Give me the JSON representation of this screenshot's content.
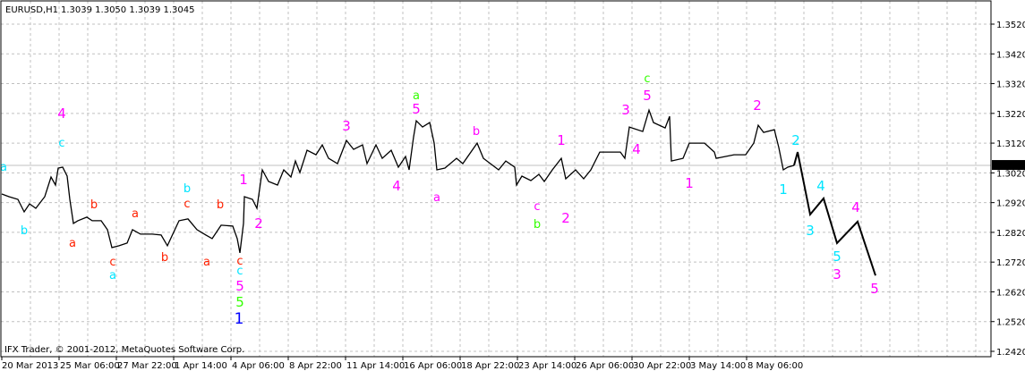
{
  "header": {
    "symbol": "EURUSD,H1",
    "ohlc": "1.3039 1.3050 1.3039 1.3045"
  },
  "copyright": "IFX Trader, © 2001-2012, MetaQuotes Software Corp.",
  "current_price": "1.3045",
  "colors": {
    "line": "#000000",
    "grid": "#c0c0c0",
    "cyan": "#00e5ff",
    "magenta": "#ff00ff",
    "red": "#ff2000",
    "green": "#33ff00",
    "blue": "#0000ff",
    "price_box": "#000000"
  },
  "chart_data": {
    "type": "line",
    "timeframe": "H1",
    "ylim": [
      1.242,
      1.352
    ],
    "grid": true,
    "y_ticks": [
      "1.3520",
      "1.3420",
      "1.3320",
      "1.3220",
      "1.3120",
      "1.3020",
      "1.2920",
      "1.2820",
      "1.2720",
      "1.2620",
      "1.2520",
      "1.2420"
    ],
    "x_ticks": [
      {
        "label": "20 Mar 2013",
        "time": "2013-03-20T14:00"
      },
      {
        "label": "25 Mar 06:00",
        "time": "2013-03-25T06:00"
      },
      {
        "label": "27 Mar 22:00",
        "time": "2013-03-27T22:00"
      },
      {
        "label": "1 Apr 14:00",
        "time": "2013-04-01T14:00"
      },
      {
        "label": "4 Apr 06:00",
        "time": "2013-04-04T06:00"
      },
      {
        "label": "8 Apr 22:00",
        "time": "2013-04-08T22:00"
      },
      {
        "label": "11 Apr 14:00",
        "time": "2013-04-11T14:00"
      },
      {
        "label": "16 Apr 06:00",
        "time": "2013-04-16T06:00"
      },
      {
        "label": "18 Apr 22:00",
        "time": "2013-04-18T22:00"
      },
      {
        "label": "23 Apr 14:00",
        "time": "2013-04-23T14:00"
      },
      {
        "label": "26 Apr 06:00",
        "time": "2013-04-26T06:00"
      },
      {
        "label": "30 Apr 22:00",
        "time": "2013-04-30T22:00"
      },
      {
        "label": "3 May 14:00",
        "time": "2013-05-03T14:00"
      },
      {
        "label": "8 May 06:00",
        "time": "2013-05-08T06:00"
      }
    ],
    "series": [
      {
        "kind": "price",
        "points": [
          [
            "2013-03-20T14:00",
            1.2949
          ],
          [
            "2013-03-20T22:00",
            1.294
          ],
          [
            "2013-03-21T08:00",
            1.2931
          ],
          [
            "2013-03-21T15:00",
            1.2889
          ],
          [
            "2013-03-21T21:00",
            1.2916
          ],
          [
            "2013-03-22T04:00",
            1.2901
          ],
          [
            "2013-03-22T14:00",
            1.294
          ],
          [
            "2013-03-22T21:00",
            1.3006
          ],
          [
            "2013-03-25T02:00",
            1.2979
          ],
          [
            "2013-03-25T05:00",
            1.3036
          ],
          [
            "2013-03-25T10:00",
            1.3039
          ],
          [
            "2013-03-25T15:00",
            1.3009
          ],
          [
            "2013-03-25T18:00",
            1.2931
          ],
          [
            "2013-03-25T22:00",
            1.285
          ],
          [
            "2013-03-26T03:00",
            1.2859
          ],
          [
            "2013-03-26T13:00",
            1.2871
          ],
          [
            "2013-03-26T19:00",
            1.2859
          ],
          [
            "2013-03-27T05:00",
            1.2859
          ],
          [
            "2013-03-27T12:00",
            1.2829
          ],
          [
            "2013-03-27T17:00",
            1.2769
          ],
          [
            "2013-03-28T01:00",
            1.2775
          ],
          [
            "2013-03-28T10:00",
            1.2784
          ],
          [
            "2013-03-28T16:00",
            1.2829
          ],
          [
            "2013-03-29T01:00",
            1.2814
          ],
          [
            "2013-03-29T14:00",
            1.2814
          ],
          [
            "2013-04-01T00:00",
            1.2811
          ],
          [
            "2013-04-01T07:00",
            1.2775
          ],
          [
            "2013-04-01T13:00",
            1.2814
          ],
          [
            "2013-04-01T20:00",
            1.2859
          ],
          [
            "2013-04-02T06:00",
            1.2865
          ],
          [
            "2013-04-02T16:00",
            1.2829
          ],
          [
            "2013-04-03T02:00",
            1.2811
          ],
          [
            "2013-04-03T09:00",
            1.2799
          ],
          [
            "2013-04-03T19:00",
            1.2844
          ],
          [
            "2013-04-04T08:00",
            1.2841
          ],
          [
            "2013-04-04T13:00",
            1.2799
          ],
          [
            "2013-04-04T16:00",
            1.2751
          ],
          [
            "2013-04-04T20:00",
            1.285
          ],
          [
            "2013-04-04T21:00",
            1.294
          ],
          [
            "2013-04-05T06:00",
            1.2931
          ],
          [
            "2013-04-05T11:00",
            1.2901
          ],
          [
            "2013-04-05T17:00",
            1.303
          ],
          [
            "2013-04-08T00:00",
            1.2991
          ],
          [
            "2013-04-08T10:00",
            1.2979
          ],
          [
            "2013-04-08T17:00",
            1.303
          ],
          [
            "2013-04-09T01:00",
            1.3006
          ],
          [
            "2013-04-09T06:00",
            1.306
          ],
          [
            "2013-04-09T11:00",
            1.3021
          ],
          [
            "2013-04-09T19:00",
            1.3096
          ],
          [
            "2013-04-10T05:00",
            1.3081
          ],
          [
            "2013-04-10T12:00",
            1.3114
          ],
          [
            "2013-04-10T19:00",
            1.3069
          ],
          [
            "2013-04-11T05:00",
            1.3051
          ],
          [
            "2013-04-11T15:00",
            1.3129
          ],
          [
            "2013-04-11T23:00",
            1.3099
          ],
          [
            "2013-04-12T09:00",
            1.3114
          ],
          [
            "2013-04-12T14:00",
            1.3051
          ],
          [
            "2013-04-15T00:00",
            1.3114
          ],
          [
            "2013-04-15T07:00",
            1.3069
          ],
          [
            "2013-04-15T17:00",
            1.3096
          ],
          [
            "2013-04-16T01:00",
            1.3039
          ],
          [
            "2013-04-16T09:00",
            1.3075
          ],
          [
            "2013-04-16T13:00",
            1.303
          ],
          [
            "2013-04-16T18:00",
            1.3141
          ],
          [
            "2013-04-16T21:00",
            1.3195
          ],
          [
            "2013-04-17T04:00",
            1.3174
          ],
          [
            "2013-04-17T12:00",
            1.3189
          ],
          [
            "2013-04-17T17:00",
            1.312
          ],
          [
            "2013-04-17T20:00",
            1.303
          ],
          [
            "2013-04-18T05:00",
            1.3036
          ],
          [
            "2013-04-18T18:00",
            1.3069
          ],
          [
            "2013-04-19T01:00",
            1.3051
          ],
          [
            "2013-04-19T17:00",
            1.312
          ],
          [
            "2013-04-22T00:00",
            1.3069
          ],
          [
            "2013-04-22T17:00",
            1.303
          ],
          [
            "2013-04-23T01:00",
            1.306
          ],
          [
            "2013-04-23T11:00",
            1.3039
          ],
          [
            "2013-04-23T13:00",
            1.2979
          ],
          [
            "2013-04-23T19:00",
            1.3009
          ],
          [
            "2013-04-24T05:00",
            1.2994
          ],
          [
            "2013-04-24T14:00",
            1.3015
          ],
          [
            "2013-04-24T20:00",
            1.2991
          ],
          [
            "2013-04-25T05:00",
            1.303
          ],
          [
            "2013-04-25T15:00",
            1.3069
          ],
          [
            "2013-04-25T20:00",
            1.3
          ],
          [
            "2013-04-26T07:00",
            1.303
          ],
          [
            "2013-04-26T16:00",
            1.3
          ],
          [
            "2013-04-29T00:00",
            1.303
          ],
          [
            "2013-04-29T10:00",
            1.309
          ],
          [
            "2013-04-30T09:00",
            1.309
          ],
          [
            "2013-04-30T14:00",
            1.3069
          ],
          [
            "2013-04-30T19:00",
            1.3174
          ],
          [
            "2013-05-01T10:00",
            1.3159
          ],
          [
            "2013-05-01T17:00",
            1.3231
          ],
          [
            "2013-05-01T22:00",
            1.3189
          ],
          [
            "2013-05-02T11:00",
            1.3171
          ],
          [
            "2013-05-02T16:00",
            1.321
          ],
          [
            "2013-05-02T18:00",
            1.306
          ],
          [
            "2013-05-03T07:00",
            1.3069
          ],
          [
            "2013-05-03T14:00",
            1.312
          ],
          [
            "2013-05-06T07:00",
            1.312
          ],
          [
            "2013-05-06T18:00",
            1.309
          ],
          [
            "2013-05-06T20:00",
            1.3069
          ],
          [
            "2013-05-07T16:00",
            1.3081
          ],
          [
            "2013-05-08T05:00",
            1.3081
          ],
          [
            "2013-05-08T14:00",
            1.312
          ],
          [
            "2013-05-08T19:00",
            1.318
          ],
          [
            "2013-05-09T01:00",
            1.3156
          ],
          [
            "2013-05-09T13:00",
            1.3165
          ],
          [
            "2013-05-09T18:00",
            1.3105
          ],
          [
            "2013-05-09T23:00",
            1.303
          ],
          [
            "2013-05-10T04:00",
            1.3039
          ],
          [
            "2013-05-10T11:00",
            1.3045
          ]
        ]
      },
      {
        "kind": "projection",
        "points": [
          [
            "2013-05-10T11:00",
            1.3045
          ],
          [
            "2013-05-10T15:00",
            1.309
          ],
          [
            "2013-05-13T05:00",
            1.288
          ],
          [
            "2013-05-13T20:00",
            1.2934
          ],
          [
            "2013-05-14T11:00",
            1.2784
          ],
          [
            "2013-05-15T10:00",
            1.2856
          ],
          [
            "2013-05-16T06:00",
            1.2675
          ]
        ]
      }
    ],
    "annotations": [
      {
        "text": "a",
        "color": "cyan",
        "time": "2013-03-20T16:00",
        "price": 1.3042
      },
      {
        "text": "b",
        "color": "cyan",
        "time": "2013-03-21T15:00",
        "price": 1.2829
      },
      {
        "text": "4",
        "color": "magenta",
        "time": "2013-03-25T09:00",
        "price": 1.322
      },
      {
        "text": "c",
        "color": "cyan",
        "time": "2013-03-25T09:00",
        "price": 1.3123
      },
      {
        "text": "a",
        "color": "red",
        "time": "2013-03-25T21:00",
        "price": 1.2787
      },
      {
        "text": "b",
        "color": "red",
        "time": "2013-03-26T21:00",
        "price": 1.2916
      },
      {
        "text": "c",
        "color": "red",
        "time": "2013-03-27T18:00",
        "price": 1.2723
      },
      {
        "text": "a",
        "color": "cyan",
        "time": "2013-03-27T18:00",
        "price": 1.2678
      },
      {
        "text": "a",
        "color": "red",
        "time": "2013-03-28T19:00",
        "price": 1.2886
      },
      {
        "text": "b",
        "color": "red",
        "time": "2013-04-01T04:00",
        "price": 1.2738
      },
      {
        "text": "b",
        "color": "cyan",
        "time": "2013-04-02T05:00",
        "price": 1.297
      },
      {
        "text": "c",
        "color": "red",
        "time": "2013-04-02T05:00",
        "price": 1.2919
      },
      {
        "text": "a",
        "color": "red",
        "time": "2013-04-03T03:00",
        "price": 1.2723
      },
      {
        "text": "b",
        "color": "red",
        "time": "2013-04-03T18:00",
        "price": 1.2916
      },
      {
        "text": "c",
        "color": "red",
        "time": "2013-04-04T16:00",
        "price": 1.2726
      },
      {
        "text": "c",
        "color": "cyan",
        "time": "2013-04-04T16:00",
        "price": 1.2693
      },
      {
        "text": "5",
        "color": "magenta",
        "time": "2013-04-04T16:00",
        "price": 1.2639
      },
      {
        "text": "5",
        "color": "green",
        "time": "2013-04-04T16:00",
        "price": 1.2585
      },
      {
        "text": "1",
        "color": "blue",
        "time": "2013-04-04T15:00",
        "price": 1.2528
      },
      {
        "text": "1",
        "color": "magenta",
        "time": "2013-04-04T20:00",
        "price": 1.2997
      },
      {
        "text": "2",
        "color": "magenta",
        "time": "2013-04-05T13:00",
        "price": 1.285
      },
      {
        "text": "3",
        "color": "magenta",
        "time": "2013-04-11T15:00",
        "price": 1.3177
      },
      {
        "text": "4",
        "color": "magenta",
        "time": "2013-04-15T23:00",
        "price": 1.2976
      },
      {
        "text": "a",
        "color": "green",
        "time": "2013-04-16T21:00",
        "price": 1.3283
      },
      {
        "text": "5",
        "color": "magenta",
        "time": "2013-04-16T21:00",
        "price": 1.3234
      },
      {
        "text": "a",
        "color": "magenta",
        "time": "2013-04-17T20:00",
        "price": 1.294
      },
      {
        "text": "b",
        "color": "magenta",
        "time": "2013-04-19T16:00",
        "price": 1.3162
      },
      {
        "text": "c",
        "color": "magenta",
        "time": "2013-04-24T12:00",
        "price": 1.291
      },
      {
        "text": "b",
        "color": "green",
        "time": "2013-04-24T12:00",
        "price": 1.285
      },
      {
        "text": "1",
        "color": "magenta",
        "time": "2013-04-25T15:00",
        "price": 1.3129
      },
      {
        "text": "2",
        "color": "magenta",
        "time": "2013-04-25T20:00",
        "price": 1.2868
      },
      {
        "text": "3",
        "color": "magenta",
        "time": "2013-04-30T15:00",
        "price": 1.3231
      },
      {
        "text": "4",
        "color": "magenta",
        "time": "2013-05-01T03:00",
        "price": 1.3099
      },
      {
        "text": "c",
        "color": "green",
        "time": "2013-05-01T15:00",
        "price": 1.334
      },
      {
        "text": "5",
        "color": "magenta",
        "time": "2013-05-01T15:00",
        "price": 1.328
      },
      {
        "text": "1",
        "color": "magenta",
        "time": "2013-05-03T14:00",
        "price": 1.2985
      },
      {
        "text": "2",
        "color": "magenta",
        "time": "2013-05-08T18:00",
        "price": 1.3246
      },
      {
        "text": "1",
        "color": "cyan",
        "time": "2013-05-09T23:00",
        "price": 1.2964
      },
      {
        "text": "2",
        "color": "cyan",
        "time": "2013-05-10T13:00",
        "price": 1.3129
      },
      {
        "text": "3",
        "color": "cyan",
        "time": "2013-05-13T05:00",
        "price": 1.2826
      },
      {
        "text": "4",
        "color": "cyan",
        "time": "2013-05-13T17:00",
        "price": 1.2976
      },
      {
        "text": "5",
        "color": "cyan",
        "time": "2013-05-14T11:00",
        "price": 1.2738
      },
      {
        "text": "3",
        "color": "magenta",
        "time": "2013-05-14T11:00",
        "price": 1.2678
      },
      {
        "text": "4",
        "color": "magenta",
        "time": "2013-05-15T08:00",
        "price": 1.2904
      },
      {
        "text": "5",
        "color": "magenta",
        "time": "2013-05-16T05:00",
        "price": 1.263
      }
    ]
  }
}
